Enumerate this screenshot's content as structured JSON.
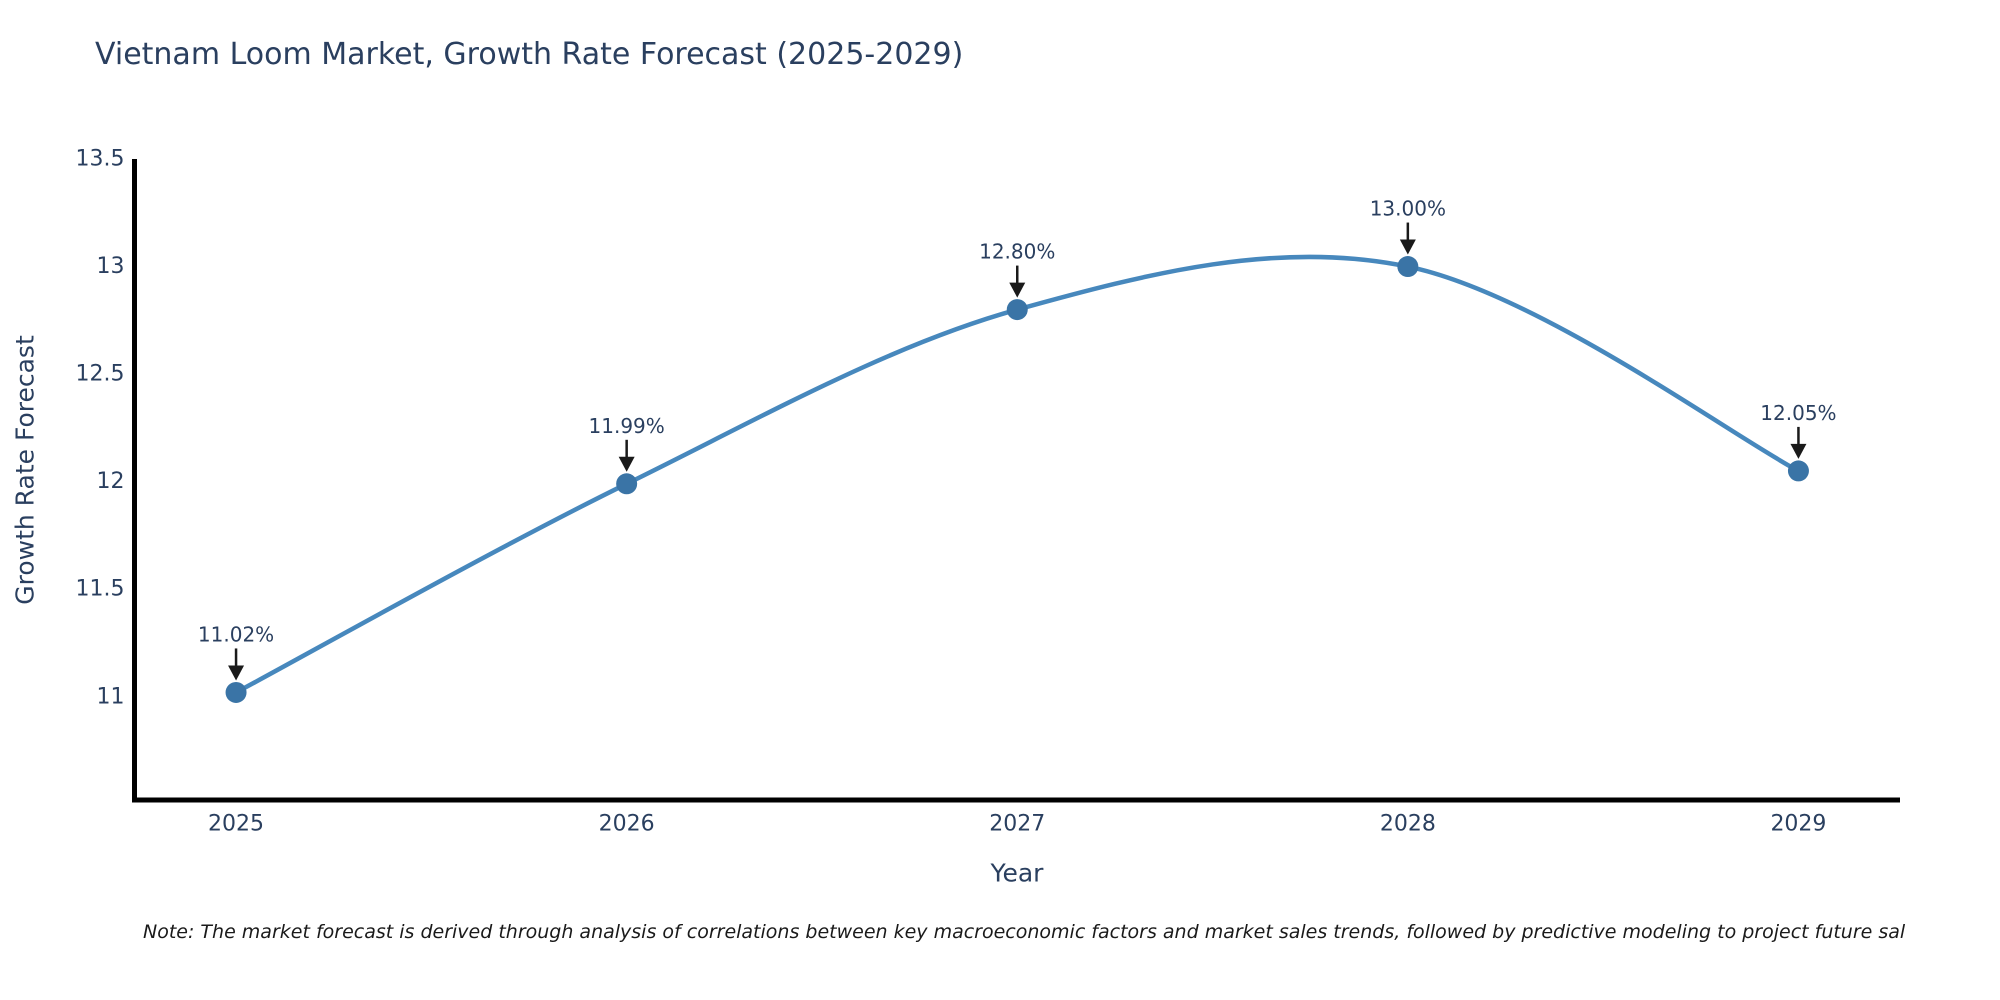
{
  "title": "Vietnam Loom Market, Growth Rate Forecast (2025-2029)",
  "note": "Note: The market forecast is derived through analysis of correlations between key macroeconomic factors and market sales trends, followed by predictive modeling to project future sal",
  "chart_data": {
    "type": "line",
    "line_shape": "spline",
    "title": "Vietnam Loom Market, Growth Rate Forecast (2025-2029)",
    "xlabel": "Year",
    "ylabel": "Growth Rate Forecast",
    "x": [
      2025,
      2026,
      2027,
      2028,
      2029
    ],
    "x_tick_labels": [
      "2025",
      "2026",
      "2027",
      "2028",
      "2029"
    ],
    "series": [
      {
        "name": "Growth Rate Forecast",
        "values": [
          11.02,
          11.99,
          12.8,
          13.0,
          12.05
        ]
      }
    ],
    "point_labels": [
      "11.02%",
      "11.99%",
      "12.80%",
      "13.00%",
      "12.05%"
    ],
    "ytick_values": [
      11,
      11.5,
      12,
      12.5,
      13,
      13.5
    ],
    "ytick_labels": [
      "11",
      "11.5",
      "12",
      "12.5",
      "13",
      "13.5"
    ],
    "xlim": [
      2024.74,
      2029.26
    ],
    "ylim": [
      10.52,
      13.5
    ],
    "grid": false,
    "legend": "none",
    "markers": true,
    "annotation_arrows": true,
    "colors": {
      "line": "#4788bd",
      "marker": "#3a74a6",
      "text": "#2a3f5f",
      "axis_line": "#000000",
      "annotation_arrow": "#1a1a1a",
      "background": "#ffffff"
    }
  }
}
